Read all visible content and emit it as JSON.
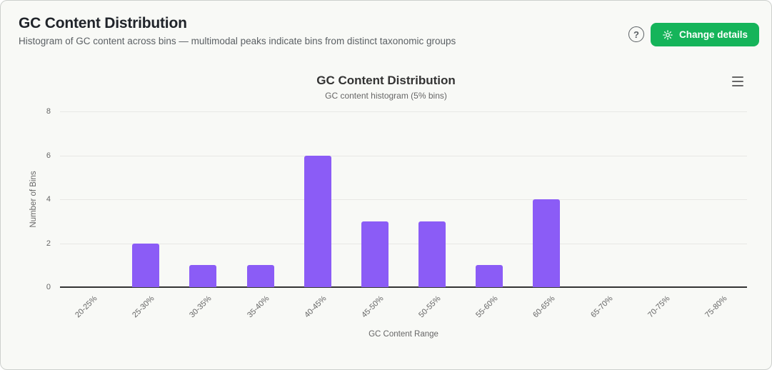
{
  "header": {
    "title": "GC Content Distribution",
    "subtitle": "Histogram of GC content across bins — multimodal peaks indicate bins from distinct taxonomic groups",
    "help_label": "?",
    "change_details_label": "Change details"
  },
  "icons": {
    "help": "circled-question-mark",
    "gear": "settings-gear",
    "chart_menu": "hamburger-menu"
  },
  "colors": {
    "accent_green": "#15b45a",
    "bar_purple": "#8b5cf6",
    "card_background": "#f8f9f6",
    "grid_line": "#e8e8e5",
    "axis_line": "#333333",
    "axis_text": "#666666"
  },
  "chart_data": {
    "type": "bar",
    "title": "GC Content Distribution",
    "subtitle": "GC content histogram (5% bins)",
    "categories": [
      "20-25%",
      "25-30%",
      "30-35%",
      "35-40%",
      "40-45%",
      "45-50%",
      "50-55%",
      "55-60%",
      "60-65%",
      "65-70%",
      "70-75%",
      "75-80%"
    ],
    "values": [
      0,
      2,
      1,
      1,
      6,
      3,
      3,
      1,
      4,
      0,
      0,
      0
    ],
    "xlabel": "GC Content Range",
    "ylabel": "Number of Bins",
    "ylim": [
      0,
      8
    ],
    "yticks": [
      0,
      2,
      4,
      6,
      8
    ],
    "grid": true,
    "legend": "none",
    "bar_color": "#8b5cf6"
  }
}
